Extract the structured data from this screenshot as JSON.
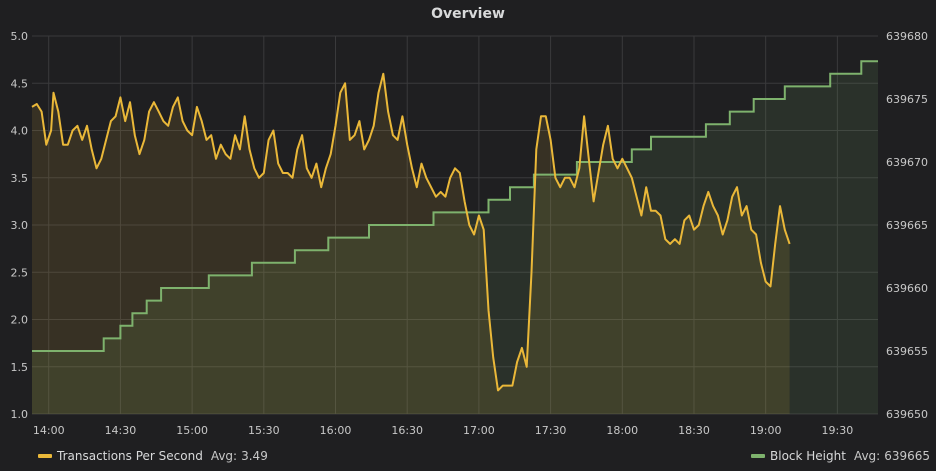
{
  "panel": {
    "title": "Overview"
  },
  "chart_data": {
    "type": "line",
    "title": "Overview",
    "x_ticks": [
      "14:00",
      "14:30",
      "15:00",
      "15:30",
      "16:00",
      "16:30",
      "17:00",
      "17:30",
      "18:00",
      "18:30",
      "19:00",
      "19:30"
    ],
    "y_left": {
      "min": 1.0,
      "max": 5.0,
      "ticks": [
        "1.0",
        "1.5",
        "2.0",
        "2.5",
        "3.0",
        "3.5",
        "4.0",
        "4.5",
        "5.0"
      ]
    },
    "y_right": {
      "min": 639650,
      "max": 639680,
      "ticks": [
        "639650",
        "639655",
        "639660",
        "639665",
        "639670",
        "639675",
        "639680"
      ]
    },
    "grid": true,
    "legend_position": "bottom",
    "series": [
      {
        "name": "Transactions Per Second",
        "axis": "left",
        "color": "#eab839",
        "avg_label": "Avg:",
        "avg_value": "3.49",
        "points": [
          [
            "13:53",
            4.25
          ],
          [
            "13:55",
            4.28
          ],
          [
            "13:57",
            4.2
          ],
          [
            "13:59",
            3.85
          ],
          [
            "14:01",
            4.0
          ],
          [
            "14:02",
            4.4
          ],
          [
            "14:04",
            4.2
          ],
          [
            "14:06",
            3.85
          ],
          [
            "14:08",
            3.85
          ],
          [
            "14:10",
            4.0
          ],
          [
            "14:12",
            4.05
          ],
          [
            "14:14",
            3.9
          ],
          [
            "14:16",
            4.05
          ],
          [
            "14:18",
            3.8
          ],
          [
            "14:20",
            3.6
          ],
          [
            "14:22",
            3.7
          ],
          [
            "14:24",
            3.9
          ],
          [
            "14:26",
            4.1
          ],
          [
            "14:28",
            4.15
          ],
          [
            "14:30",
            4.35
          ],
          [
            "14:32",
            4.1
          ],
          [
            "14:34",
            4.3
          ],
          [
            "14:36",
            3.95
          ],
          [
            "14:38",
            3.75
          ],
          [
            "14:40",
            3.9
          ],
          [
            "14:42",
            4.2
          ],
          [
            "14:44",
            4.3
          ],
          [
            "14:46",
            4.2
          ],
          [
            "14:48",
            4.1
          ],
          [
            "14:50",
            4.05
          ],
          [
            "14:52",
            4.25
          ],
          [
            "14:54",
            4.35
          ],
          [
            "14:56",
            4.1
          ],
          [
            "14:58",
            4.0
          ],
          [
            "15:00",
            3.95
          ],
          [
            "15:02",
            4.25
          ],
          [
            "15:04",
            4.1
          ],
          [
            "15:06",
            3.9
          ],
          [
            "15:08",
            3.95
          ],
          [
            "15:10",
            3.7
          ],
          [
            "15:12",
            3.85
          ],
          [
            "15:14",
            3.75
          ],
          [
            "15:16",
            3.7
          ],
          [
            "15:18",
            3.95
          ],
          [
            "15:20",
            3.8
          ],
          [
            "15:22",
            4.15
          ],
          [
            "15:24",
            3.8
          ],
          [
            "15:26",
            3.6
          ],
          [
            "15:28",
            3.5
          ],
          [
            "15:30",
            3.55
          ],
          [
            "15:32",
            3.9
          ],
          [
            "15:34",
            4.0
          ],
          [
            "15:36",
            3.65
          ],
          [
            "15:38",
            3.55
          ],
          [
            "15:40",
            3.55
          ],
          [
            "15:42",
            3.5
          ],
          [
            "15:44",
            3.8
          ],
          [
            "15:46",
            3.95
          ],
          [
            "15:48",
            3.6
          ],
          [
            "15:50",
            3.5
          ],
          [
            "15:52",
            3.65
          ],
          [
            "15:54",
            3.4
          ],
          [
            "15:56",
            3.6
          ],
          [
            "15:58",
            3.75
          ],
          [
            "16:00",
            4.05
          ],
          [
            "16:02",
            4.4
          ],
          [
            "16:04",
            4.5
          ],
          [
            "16:06",
            3.9
          ],
          [
            "16:08",
            3.95
          ],
          [
            "16:10",
            4.1
          ],
          [
            "16:12",
            3.8
          ],
          [
            "16:14",
            3.9
          ],
          [
            "16:16",
            4.05
          ],
          [
            "16:18",
            4.4
          ],
          [
            "16:20",
            4.6
          ],
          [
            "16:22",
            4.2
          ],
          [
            "16:24",
            3.95
          ],
          [
            "16:26",
            3.9
          ],
          [
            "16:28",
            4.15
          ],
          [
            "16:30",
            3.85
          ],
          [
            "16:32",
            3.6
          ],
          [
            "16:34",
            3.4
          ],
          [
            "16:36",
            3.65
          ],
          [
            "16:38",
            3.5
          ],
          [
            "16:40",
            3.4
          ],
          [
            "16:42",
            3.3
          ],
          [
            "16:44",
            3.35
          ],
          [
            "16:46",
            3.3
          ],
          [
            "16:48",
            3.5
          ],
          [
            "16:50",
            3.6
          ],
          [
            "16:52",
            3.55
          ],
          [
            "16:54",
            3.25
          ],
          [
            "16:56",
            3.0
          ],
          [
            "16:58",
            2.9
          ],
          [
            "17:00",
            3.1
          ],
          [
            "17:02",
            2.95
          ],
          [
            "17:04",
            2.1
          ],
          [
            "17:06",
            1.6
          ],
          [
            "17:08",
            1.25
          ],
          [
            "17:10",
            1.3
          ],
          [
            "17:12",
            1.3
          ],
          [
            "17:14",
            1.3
          ],
          [
            "17:16",
            1.55
          ],
          [
            "17:18",
            1.7
          ],
          [
            "17:20",
            1.5
          ],
          [
            "17:22",
            2.5
          ],
          [
            "17:24",
            3.8
          ],
          [
            "17:26",
            4.15
          ],
          [
            "17:28",
            4.15
          ],
          [
            "17:30",
            3.9
          ],
          [
            "17:32",
            3.5
          ],
          [
            "17:34",
            3.4
          ],
          [
            "17:36",
            3.5
          ],
          [
            "17:38",
            3.5
          ],
          [
            "17:40",
            3.4
          ],
          [
            "17:42",
            3.6
          ],
          [
            "17:44",
            4.15
          ],
          [
            "17:46",
            3.7
          ],
          [
            "17:48",
            3.25
          ],
          [
            "17:50",
            3.55
          ],
          [
            "17:52",
            3.85
          ],
          [
            "17:54",
            4.05
          ],
          [
            "17:56",
            3.7
          ],
          [
            "17:58",
            3.6
          ],
          [
            "18:00",
            3.7
          ],
          [
            "18:02",
            3.6
          ],
          [
            "18:04",
            3.5
          ],
          [
            "18:06",
            3.3
          ],
          [
            "18:08",
            3.1
          ],
          [
            "18:10",
            3.4
          ],
          [
            "18:12",
            3.15
          ],
          [
            "18:14",
            3.15
          ],
          [
            "18:16",
            3.1
          ],
          [
            "18:18",
            2.85
          ],
          [
            "18:20",
            2.8
          ],
          [
            "18:22",
            2.85
          ],
          [
            "18:24",
            2.8
          ],
          [
            "18:26",
            3.05
          ],
          [
            "18:28",
            3.1
          ],
          [
            "18:30",
            2.95
          ],
          [
            "18:32",
            3.0
          ],
          [
            "18:34",
            3.2
          ],
          [
            "18:36",
            3.35
          ],
          [
            "18:38",
            3.2
          ],
          [
            "18:40",
            3.1
          ],
          [
            "18:42",
            2.9
          ],
          [
            "18:44",
            3.05
          ],
          [
            "18:46",
            3.3
          ],
          [
            "18:48",
            3.4
          ],
          [
            "18:50",
            3.1
          ],
          [
            "18:52",
            3.2
          ],
          [
            "18:54",
            2.95
          ],
          [
            "18:56",
            2.9
          ],
          [
            "18:58",
            2.6
          ],
          [
            "19:00",
            2.4
          ],
          [
            "19:02",
            2.35
          ],
          [
            "19:04",
            2.8
          ],
          [
            "19:06",
            3.2
          ],
          [
            "19:08",
            2.95
          ],
          [
            "19:10",
            2.8
          ]
        ]
      },
      {
        "name": "Block Height",
        "axis": "right",
        "color": "#7eb26d",
        "avg_label": "Avg:",
        "avg_value": "639665",
        "steps": [
          [
            "13:53",
            639655
          ],
          [
            "14:23",
            639656
          ],
          [
            "14:30",
            639657
          ],
          [
            "14:35",
            639658
          ],
          [
            "14:41",
            639659
          ],
          [
            "14:47",
            639660
          ],
          [
            "15:07",
            639661
          ],
          [
            "15:25",
            639662
          ],
          [
            "15:43",
            639663
          ],
          [
            "15:57",
            639664
          ],
          [
            "16:14",
            639665
          ],
          [
            "16:41",
            639666
          ],
          [
            "17:04",
            639667
          ],
          [
            "17:13",
            639668
          ],
          [
            "17:23",
            639669
          ],
          [
            "17:41",
            639670
          ],
          [
            "18:04",
            639671
          ],
          [
            "18:12",
            639672
          ],
          [
            "18:35",
            639673
          ],
          [
            "18:45",
            639674
          ],
          [
            "18:55",
            639675
          ],
          [
            "19:08",
            639676
          ],
          [
            "19:27",
            639677
          ],
          [
            "19:40",
            639678
          ]
        ]
      }
    ]
  }
}
